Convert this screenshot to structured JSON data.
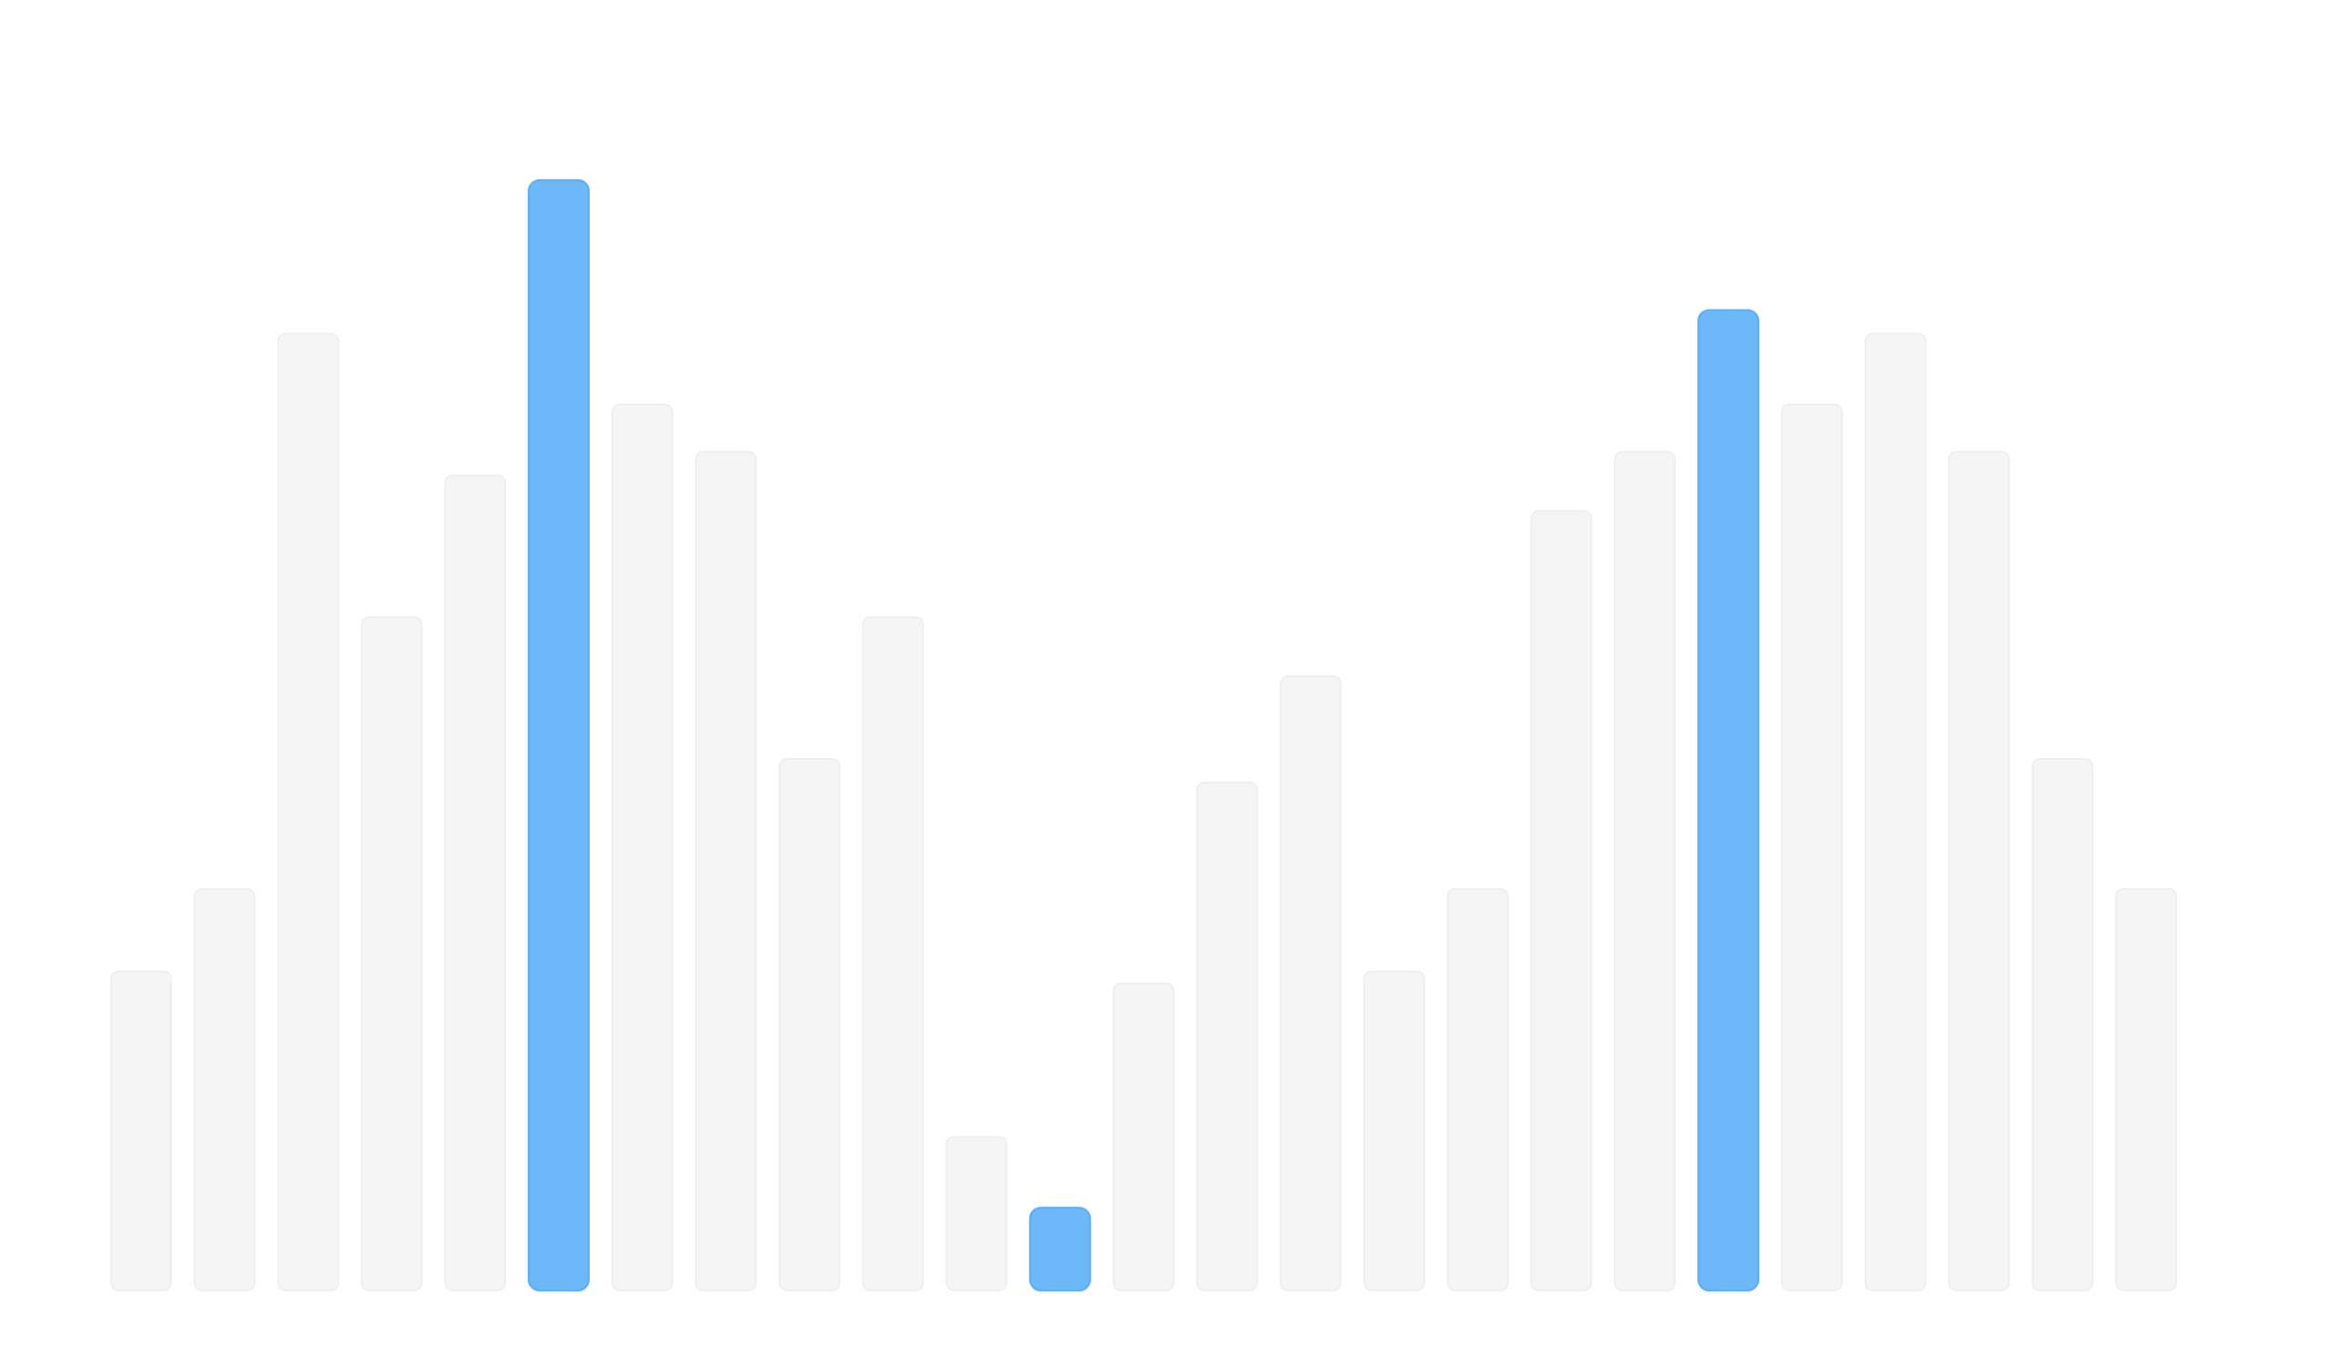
{
  "chart_data": {
    "type": "bar",
    "title": "",
    "xlabel": "",
    "ylabel": "",
    "grid": false,
    "legend": "none",
    "ylim": [
      0,
      100
    ],
    "colors": {
      "highlight": "#6cb8f8",
      "highlight_edge": "#5aaaf0",
      "muted": "#f5f5f5",
      "muted_edge": "#ececec"
    },
    "values": [
      27,
      34,
      81,
      57,
      69,
      94,
      75,
      71,
      45,
      57,
      13,
      7,
      26,
      43,
      52,
      27,
      34,
      66,
      71,
      83,
      75,
      81,
      71,
      45,
      34
    ]
  }
}
